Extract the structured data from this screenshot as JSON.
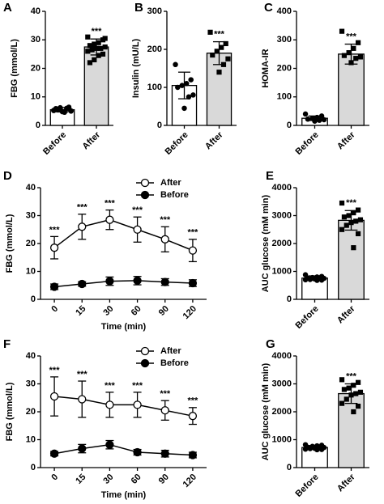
{
  "chart_data": [
    {
      "type": "bar",
      "panel": "A",
      "y_label": "FBG (mmol/L)",
      "categories": [
        "Before",
        "After"
      ],
      "values": [
        5.5,
        27.5
      ],
      "errors": [
        0.8,
        2.8
      ],
      "colors": [
        "#ffffff",
        "#d9d9d9"
      ],
      "markers": [
        "circle",
        "square"
      ],
      "points": [
        [
          5.2,
          5.8,
          4.6,
          6.2,
          5.5,
          5.0,
          6.0,
          4.8,
          5.7,
          5.3,
          6.4,
          4.9,
          5.6,
          5.9,
          5.1
        ],
        [
          31,
          30,
          29,
          28.5,
          28,
          27.5,
          27,
          27,
          26.5,
          26,
          25,
          24.5,
          23,
          22,
          30.5
        ]
      ],
      "annotation": "***",
      "ylim": [
        0,
        40
      ],
      "yticks": [
        0,
        10,
        20,
        30,
        40
      ]
    },
    {
      "type": "bar",
      "panel": "B",
      "y_label": "Insulin (mU/L)",
      "categories": [
        "Before",
        "After"
      ],
      "values": [
        105,
        190
      ],
      "errors": [
        35,
        30
      ],
      "colors": [
        "#ffffff",
        "#d9d9d9"
      ],
      "markers": [
        "circle",
        "square"
      ],
      "points": [
        [
          160,
          120,
          110,
          105,
          100,
          80,
          75,
          45
        ],
        [
          245,
          215,
          205,
          195,
          185,
          175,
          160,
          140
        ]
      ],
      "annotation": "***",
      "ylim": [
        0,
        300
      ],
      "yticks": [
        0,
        100,
        200,
        300
      ]
    },
    {
      "type": "bar",
      "panel": "C",
      "y_label": "HOMA-IR",
      "categories": [
        "Before",
        "After"
      ],
      "values": [
        25,
        250
      ],
      "errors": [
        8,
        35
      ],
      "colors": [
        "#ffffff",
        "#d9d9d9"
      ],
      "markers": [
        "circle",
        "square"
      ],
      "points": [
        [
          40,
          33,
          28,
          25,
          22,
          20,
          18,
          15
        ],
        [
          330,
          290,
          270,
          255,
          245,
          240,
          235,
          220
        ]
      ],
      "annotation": "***",
      "ylim": [
        0,
        400
      ],
      "yticks": [
        0,
        100,
        200,
        300,
        400
      ]
    },
    {
      "type": "line",
      "panel": "D",
      "y_label": "FBG (mmol/L)",
      "x_label": "Time (min)",
      "categories": [
        "0",
        "15",
        "30",
        "60",
        "90",
        "120"
      ],
      "series": [
        {
          "name": "After",
          "color": "#000000",
          "marker_fill": "#ffffff",
          "values": [
            18.5,
            26,
            28.5,
            25,
            21.5,
            17.5
          ],
          "errors": [
            4,
            4.5,
            3.5,
            4.5,
            4.5,
            4
          ]
        },
        {
          "name": "Before",
          "color": "#000000",
          "marker_fill": "#000000",
          "values": [
            4.5,
            5.5,
            6.5,
            6.7,
            6.2,
            5.8
          ],
          "errors": [
            1,
            0.8,
            1.5,
            1.5,
            1.2,
            1.2
          ]
        }
      ],
      "annotation": "***",
      "legend": "upper right",
      "ylim": [
        0,
        40
      ],
      "yticks": [
        0,
        10,
        20,
        30,
        40
      ]
    },
    {
      "type": "bar",
      "panel": "E",
      "y_label": "AUC glucose (mM min)",
      "categories": [
        "Before",
        "After"
      ],
      "values": [
        760,
        2830
      ],
      "errors": [
        80,
        350
      ],
      "colors": [
        "#ffffff",
        "#d9d9d9"
      ],
      "markers": [
        "circle",
        "square"
      ],
      "points": [
        [
          880,
          820,
          800,
          780,
          760,
          750,
          740,
          730,
          710,
          700,
          690,
          680
        ],
        [
          3450,
          3200,
          3100,
          3000,
          2950,
          2850,
          2800,
          2750,
          2650,
          2500,
          2350,
          1850
        ]
      ],
      "annotation": "***",
      "ylim": [
        0,
        4000
      ],
      "yticks": [
        0,
        1000,
        2000,
        3000,
        4000
      ]
    },
    {
      "type": "line",
      "panel": "F",
      "y_label": "FBG (mmol/L)",
      "x_label": "Time (min)",
      "categories": [
        "0",
        "15",
        "30",
        "60",
        "90",
        "120"
      ],
      "series": [
        {
          "name": "After",
          "color": "#000000",
          "marker_fill": "#ffffff",
          "values": [
            25.5,
            24.5,
            22.5,
            22.5,
            20.5,
            18.5
          ],
          "errors": [
            7,
            6.5,
            4.5,
            4.5,
            3.5,
            3
          ]
        },
        {
          "name": "Before",
          "color": "#000000",
          "marker_fill": "#000000",
          "values": [
            5,
            6.8,
            8.2,
            5.5,
            5,
            4.5
          ],
          "errors": [
            0.8,
            1.5,
            1.5,
            1,
            1.2,
            1
          ]
        }
      ],
      "annotation": "***",
      "legend": "upper right",
      "ylim": [
        0,
        40
      ],
      "yticks": [
        0,
        10,
        20,
        30,
        40
      ]
    },
    {
      "type": "bar",
      "panel": "G",
      "y_label": "AUC glucose (mM min)",
      "categories": [
        "Before",
        "After"
      ],
      "values": [
        720,
        2650
      ],
      "errors": [
        70,
        350
      ],
      "colors": [
        "#ffffff",
        "#d9d9d9"
      ],
      "markers": [
        "circle",
        "square"
      ],
      "points": [
        [
          820,
          800,
          780,
          760,
          730,
          720,
          700,
          690,
          680,
          660,
          650,
          640
        ],
        [
          3150,
          3050,
          2950,
          2850,
          2800,
          2700,
          2650,
          2600,
          2450,
          2300,
          2200,
          2000
        ]
      ],
      "annotation": "***",
      "ylim": [
        0,
        4000
      ],
      "yticks": [
        0,
        1000,
        2000,
        3000,
        4000
      ]
    }
  ]
}
